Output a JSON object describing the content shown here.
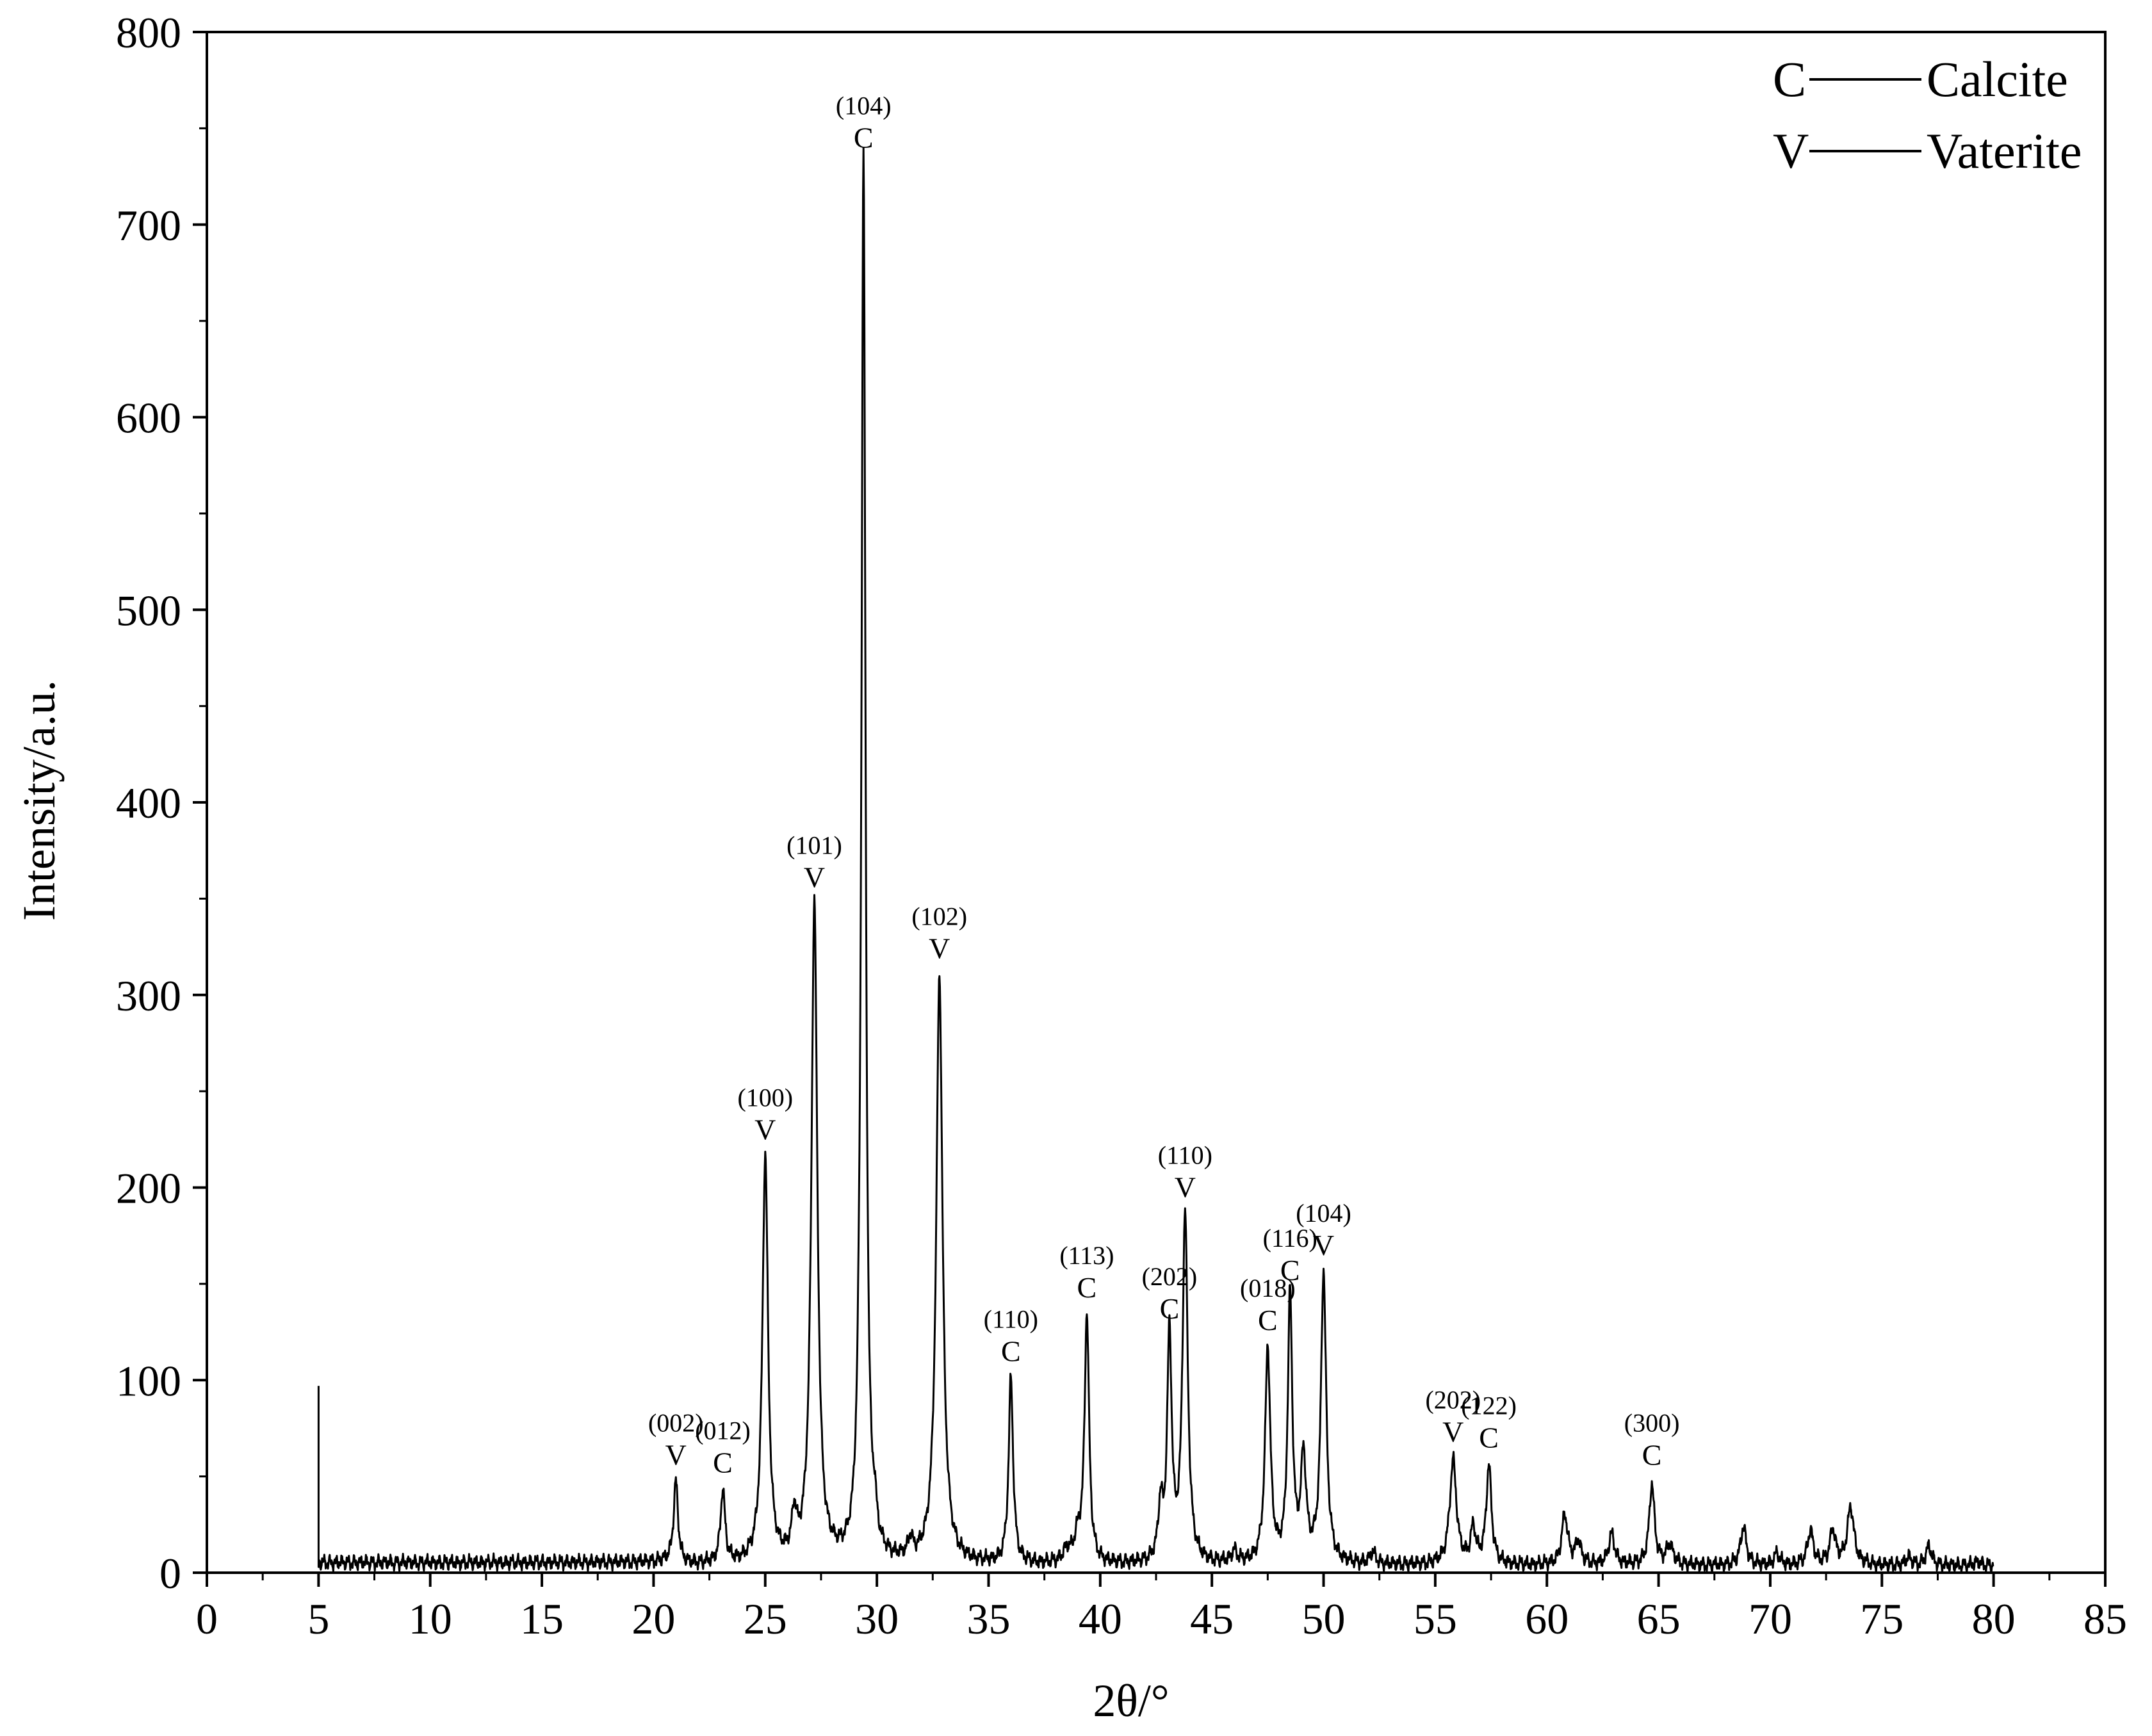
{
  "chart_data": {
    "type": "line",
    "title": "",
    "xlabel": "2θ/°",
    "ylabel": "Intensity/a.u.",
    "xlim": [
      0,
      85
    ],
    "ylim": [
      0,
      800
    ],
    "x_ticks": [
      "0",
      "5",
      "10",
      "15",
      "20",
      "25",
      "30",
      "35",
      "40",
      "45",
      "50",
      "55",
      "60",
      "65",
      "70",
      "75",
      "80",
      "85"
    ],
    "y_ticks": [
      "0",
      "100",
      "200",
      "300",
      "400",
      "500",
      "600",
      "700",
      "800"
    ],
    "grid": false,
    "legend_position": "top-right",
    "legend": [
      {
        "symbol": "C",
        "label": "Calcite"
      },
      {
        "symbol": "V",
        "label": "Vaterite"
      }
    ],
    "baseline_start": {
      "x": 5.0,
      "y": 97
    },
    "peaks": [
      {
        "x": 21.0,
        "y": 46,
        "w": 0.12,
        "phase": "V",
        "hkl": "(002)"
      },
      {
        "x": 23.1,
        "y": 42,
        "w": 0.12,
        "phase": "C",
        "hkl": "(012)"
      },
      {
        "x": 25.0,
        "y": 215,
        "w": 0.15,
        "phase": "V",
        "hkl": "(100)"
      },
      {
        "x": 26.3,
        "y": 25,
        "w": 0.12
      },
      {
        "x": 27.2,
        "y": 346,
        "w": 0.16,
        "phase": "V",
        "hkl": "(101)"
      },
      {
        "x": 29.2,
        "y": 20,
        "w": 0.1
      },
      {
        "x": 29.4,
        "y": 730,
        "w": 0.11,
        "phase": "C",
        "hkl": "(104)"
      },
      {
        "x": 29.9,
        "y": 18,
        "w": 0.1
      },
      {
        "x": 31.5,
        "y": 14,
        "w": 0.12
      },
      {
        "x": 32.8,
        "y": 309,
        "w": 0.17,
        "phase": "V",
        "hkl": "(102)"
      },
      {
        "x": 36.0,
        "y": 100,
        "w": 0.12,
        "phase": "C",
        "hkl": "(110)"
      },
      {
        "x": 38.5,
        "y": 10,
        "w": 0.2
      },
      {
        "x": 39.0,
        "y": 16,
        "w": 0.2
      },
      {
        "x": 39.4,
        "y": 133,
        "w": 0.12,
        "phase": "C",
        "hkl": "(113)"
      },
      {
        "x": 42.7,
        "y": 32,
        "w": 0.12
      },
      {
        "x": 43.1,
        "y": 122,
        "w": 0.12,
        "phase": "C",
        "hkl": "(202)"
      },
      {
        "x": 43.8,
        "y": 185,
        "w": 0.14,
        "phase": "V",
        "hkl": "(110)"
      },
      {
        "x": 46.0,
        "y": 10,
        "w": 0.15
      },
      {
        "x": 47.5,
        "y": 116,
        "w": 0.14,
        "phase": "C",
        "hkl": "(018)"
      },
      {
        "x": 48.5,
        "y": 142,
        "w": 0.12,
        "phase": "C",
        "hkl": "(116)"
      },
      {
        "x": 49.1,
        "y": 58,
        "w": 0.14
      },
      {
        "x": 50.0,
        "y": 155,
        "w": 0.14,
        "phase": "V",
        "hkl": "(104)"
      },
      {
        "x": 52.2,
        "y": 10,
        "w": 0.15
      },
      {
        "x": 55.8,
        "y": 58,
        "w": 0.18,
        "phase": "V",
        "hkl": "(202)"
      },
      {
        "x": 56.7,
        "y": 22,
        "w": 0.14
      },
      {
        "x": 57.4,
        "y": 55,
        "w": 0.14,
        "phase": "C",
        "hkl": "(122)"
      },
      {
        "x": 60.8,
        "y": 30,
        "w": 0.16
      },
      {
        "x": 61.4,
        "y": 16,
        "w": 0.15
      },
      {
        "x": 62.9,
        "y": 20,
        "w": 0.16
      },
      {
        "x": 64.7,
        "y": 46,
        "w": 0.14,
        "phase": "C",
        "hkl": "(300)"
      },
      {
        "x": 65.5,
        "y": 14,
        "w": 0.18
      },
      {
        "x": 68.8,
        "y": 24,
        "w": 0.15
      },
      {
        "x": 70.3,
        "y": 10,
        "w": 0.15
      },
      {
        "x": 71.8,
        "y": 22,
        "w": 0.15
      },
      {
        "x": 72.8,
        "y": 22,
        "w": 0.15
      },
      {
        "x": 73.6,
        "y": 34,
        "w": 0.18
      },
      {
        "x": 76.2,
        "y": 8,
        "w": 0.15
      },
      {
        "x": 77.1,
        "y": 14,
        "w": 0.14
      },
      {
        "x": 79.3,
        "y": 6,
        "w": 0.15
      }
    ]
  }
}
